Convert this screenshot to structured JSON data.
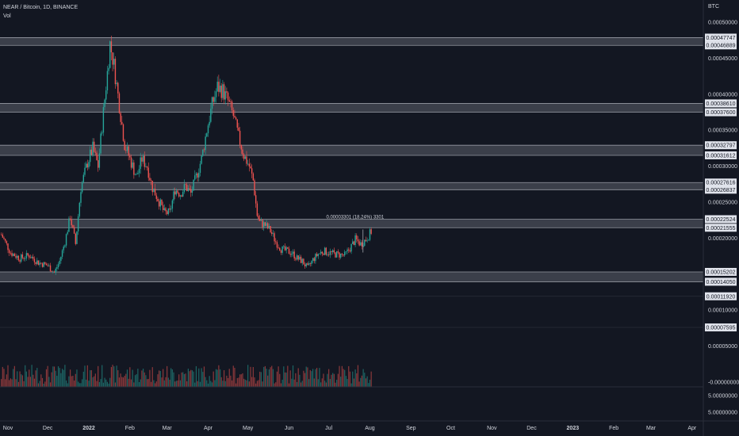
{
  "header": {
    "symbol_line": "NEAR / Bitcoin, 1D, BINANCE",
    "volume_label": "Vol"
  },
  "colors": {
    "background": "#131722",
    "up": "#26a69a",
    "down": "#ef5350",
    "zone": "#5d606b",
    "text": "#d1d4dc",
    "label_bg": "#e0e3eb"
  },
  "chart_data": {
    "type": "candlestick",
    "currency_label": "BTC",
    "x_ticks": [
      {
        "label": "Nov",
        "date": "2021-11-01"
      },
      {
        "label": "Dec",
        "date": "2021-12-01"
      },
      {
        "label": "2022",
        "date": "2022-01-01",
        "bold": true
      },
      {
        "label": "Feb",
        "date": "2022-02-01"
      },
      {
        "label": "Mar",
        "date": "2022-03-01"
      },
      {
        "label": "Apr",
        "date": "2022-04-01"
      },
      {
        "label": "May",
        "date": "2022-05-01"
      },
      {
        "label": "Jun",
        "date": "2022-06-01"
      },
      {
        "label": "Jul",
        "date": "2022-07-01"
      },
      {
        "label": "Aug",
        "date": "2022-08-01"
      },
      {
        "label": "Sep",
        "date": "2022-09-01"
      },
      {
        "label": "Oct",
        "date": "2022-10-01"
      },
      {
        "label": "Nov",
        "date": "2022-11-01"
      },
      {
        "label": "Dec",
        "date": "2022-12-01"
      },
      {
        "label": "2023",
        "date": "2023-01-01",
        "bold": true
      },
      {
        "label": "Feb",
        "date": "2023-02-01"
      },
      {
        "label": "Mar",
        "date": "2023-03-01"
      },
      {
        "label": "Apr",
        "date": "2023-04-01"
      }
    ],
    "y_ticks": [
      "0.00050000",
      "0.00045000",
      "0.00040000",
      "0.00035000",
      "0.00030000",
      "0.00025000",
      "0.00020000",
      "0.00010000",
      "0.00005000",
      "-0.00000000"
    ],
    "volume_ticks": [
      "5.00000000",
      "5.00000000"
    ],
    "zones": [
      {
        "top": "0.00047747",
        "bottom": "0.00046889"
      },
      {
        "top": "0.00038610",
        "bottom": "0.00037600"
      },
      {
        "top": "0.00032797",
        "bottom": "0.00031612"
      },
      {
        "top": "0.00027616",
        "bottom": "0.00026837"
      },
      {
        "top": "0.00022524",
        "bottom": "0.00021555"
      },
      {
        "top": "0.00015202",
        "bottom": "0.00014050"
      }
    ],
    "extra_levels": [
      "0.00011920",
      "0.00007595"
    ],
    "measure_text": "0.00003301 (18.24%) 3301",
    "series": [
      {
        "date": "2021-10-27",
        "close": 0.000205
      },
      {
        "date": "2021-11-03",
        "close": 0.00018
      },
      {
        "date": "2021-11-10",
        "close": 0.000172
      },
      {
        "date": "2021-11-17",
        "close": 0.000176
      },
      {
        "date": "2021-11-24",
        "close": 0.000166
      },
      {
        "date": "2021-12-01",
        "close": 0.000162
      },
      {
        "date": "2021-12-06",
        "close": 0.000152
      },
      {
        "date": "2021-12-10",
        "close": 0.000168
      },
      {
        "date": "2021-12-14",
        "close": 0.000195
      },
      {
        "date": "2021-12-18",
        "close": 0.00023
      },
      {
        "date": "2021-12-22",
        "close": 0.000192
      },
      {
        "date": "2021-12-26",
        "close": 0.00027
      },
      {
        "date": "2021-12-31",
        "close": 0.000305
      },
      {
        "date": "2022-01-04",
        "close": 0.000325
      },
      {
        "date": "2022-01-08",
        "close": 0.0003
      },
      {
        "date": "2022-01-12",
        "close": 0.000375
      },
      {
        "date": "2022-01-15",
        "close": 0.00043
      },
      {
        "date": "2022-01-17",
        "close": 0.00047
      },
      {
        "date": "2022-01-20",
        "close": 0.00044
      },
      {
        "date": "2022-01-24",
        "close": 0.000385
      },
      {
        "date": "2022-01-28",
        "close": 0.00033
      },
      {
        "date": "2022-02-02",
        "close": 0.000305
      },
      {
        "date": "2022-02-06",
        "close": 0.000285
      },
      {
        "date": "2022-02-10",
        "close": 0.00031
      },
      {
        "date": "2022-02-14",
        "close": 0.0003
      },
      {
        "date": "2022-02-18",
        "close": 0.00027
      },
      {
        "date": "2022-02-22",
        "close": 0.000255
      },
      {
        "date": "2022-02-27",
        "close": 0.000235
      },
      {
        "date": "2022-03-03",
        "close": 0.000235
      },
      {
        "date": "2022-03-07",
        "close": 0.000268
      },
      {
        "date": "2022-03-11",
        "close": 0.000262
      },
      {
        "date": "2022-03-15",
        "close": 0.000272
      },
      {
        "date": "2022-03-19",
        "close": 0.000262
      },
      {
        "date": "2022-03-23",
        "close": 0.000285
      },
      {
        "date": "2022-03-27",
        "close": 0.00031
      },
      {
        "date": "2022-03-31",
        "close": 0.00035
      },
      {
        "date": "2022-04-04",
        "close": 0.000385
      },
      {
        "date": "2022-04-08",
        "close": 0.00041
      },
      {
        "date": "2022-04-12",
        "close": 0.000405
      },
      {
        "date": "2022-04-16",
        "close": 0.00039
      },
      {
        "date": "2022-04-20",
        "close": 0.00037
      },
      {
        "date": "2022-04-24",
        "close": 0.00034
      },
      {
        "date": "2022-04-28",
        "close": 0.000315
      },
      {
        "date": "2022-05-02",
        "close": 0.0003
      },
      {
        "date": "2022-05-05",
        "close": 0.00028
      },
      {
        "date": "2022-05-08",
        "close": 0.000232
      },
      {
        "date": "2022-05-10",
        "close": 0.000222
      },
      {
        "date": "2022-05-14",
        "close": 0.000218
      },
      {
        "date": "2022-05-18",
        "close": 0.00021
      },
      {
        "date": "2022-05-22",
        "close": 0.000195
      },
      {
        "date": "2022-05-26",
        "close": 0.000185
      },
      {
        "date": "2022-05-30",
        "close": 0.000182
      },
      {
        "date": "2022-06-03",
        "close": 0.00018
      },
      {
        "date": "2022-06-07",
        "close": 0.000172
      },
      {
        "date": "2022-06-11",
        "close": 0.000168
      },
      {
        "date": "2022-06-15",
        "close": 0.000158
      },
      {
        "date": "2022-06-19",
        "close": 0.00017
      },
      {
        "date": "2022-06-23",
        "close": 0.000178
      },
      {
        "date": "2022-06-27",
        "close": 0.000182
      },
      {
        "date": "2022-07-01",
        "close": 0.00018
      },
      {
        "date": "2022-07-05",
        "close": 0.000178
      },
      {
        "date": "2022-07-09",
        "close": 0.000177
      },
      {
        "date": "2022-07-13",
        "close": 0.000176
      },
      {
        "date": "2022-07-17",
        "close": 0.000186
      },
      {
        "date": "2022-07-21",
        "close": 0.000198
      },
      {
        "date": "2022-07-25",
        "close": 0.000192
      },
      {
        "date": "2022-07-29",
        "close": 0.000198
      },
      {
        "date": "2022-08-03",
        "close": 0.000212
      }
    ]
  }
}
